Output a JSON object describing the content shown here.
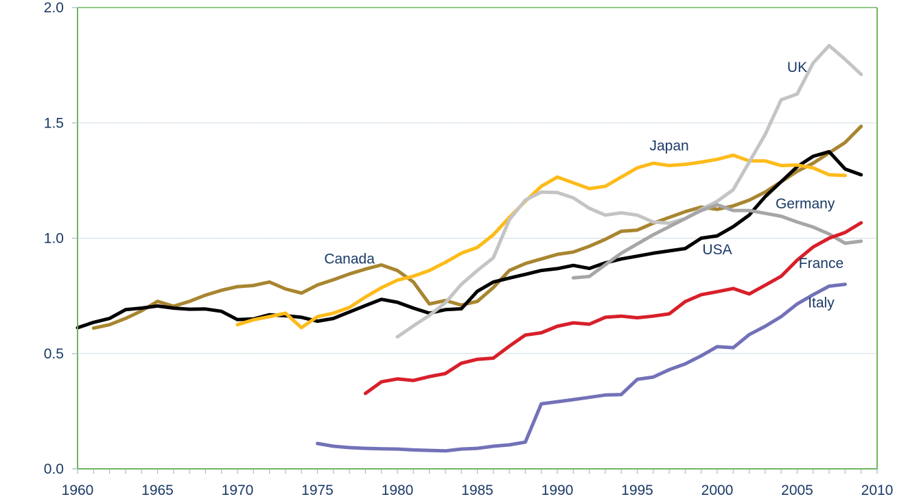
{
  "chart_data": {
    "type": "line",
    "title": "",
    "xlabel": "",
    "ylabel": "",
    "xlim": [
      1960,
      2010
    ],
    "ylim": [
      0.0,
      2.0
    ],
    "x_ticks": [
      "1960",
      "1965",
      "1970",
      "1975",
      "1980",
      "1985",
      "1990",
      "1995",
      "2000",
      "2005",
      "2010"
    ],
    "y_ticks": [
      "0.0",
      "0.5",
      "1.0",
      "1.5",
      "2.0"
    ],
    "grid": "horizontal",
    "legend": "inline labels",
    "colors": {
      "axis": "#6fb55f",
      "grid": "#9fb8cc",
      "label_text": "#1a3a66"
    },
    "series": [
      {
        "name": "Canada",
        "color": "#a88530",
        "label_anchor": {
          "year": 1977,
          "value": 0.89
        },
        "x": [
          1961,
          1962,
          1963,
          1964,
          1965,
          1966,
          1967,
          1968,
          1969,
          1970,
          1971,
          1972,
          1973,
          1974,
          1975,
          1976,
          1977,
          1978,
          1979,
          1980,
          1981,
          1982,
          1983,
          1984,
          1985,
          1986,
          1987,
          1988,
          1989,
          1990,
          1991,
          1992,
          1993,
          1994,
          1995,
          1996,
          1997,
          1998,
          1999,
          2000,
          2001,
          2002,
          2003,
          2004,
          2005,
          2006,
          2007,
          2008,
          2009
        ],
        "y": [
          0.61,
          0.625,
          0.652,
          0.685,
          0.726,
          0.705,
          0.726,
          0.753,
          0.774,
          0.79,
          0.795,
          0.81,
          0.78,
          0.762,
          0.797,
          0.82,
          0.845,
          0.866,
          0.884,
          0.86,
          0.81,
          0.715,
          0.73,
          0.71,
          0.726,
          0.786,
          0.86,
          0.89,
          0.91,
          0.93,
          0.94,
          0.965,
          0.995,
          1.03,
          1.035,
          1.065,
          1.09,
          1.115,
          1.135,
          1.125,
          1.14,
          1.165,
          1.2,
          1.245,
          1.29,
          1.325,
          1.37,
          1.415,
          1.485
        ]
      },
      {
        "name": "USA",
        "color": "#000000",
        "label_anchor": {
          "year": 2000,
          "value": 0.93
        },
        "x": [
          1960,
          1961,
          1962,
          1963,
          1964,
          1965,
          1966,
          1967,
          1968,
          1969,
          1970,
          1971,
          1972,
          1973,
          1974,
          1975,
          1976,
          1977,
          1978,
          1979,
          1980,
          1981,
          1982,
          1983,
          1984,
          1985,
          1986,
          1987,
          1988,
          1989,
          1990,
          1991,
          1992,
          1993,
          1994,
          1995,
          1996,
          1997,
          1998,
          1999,
          2000,
          2001,
          2002,
          2003,
          2004,
          2005,
          2006,
          2007,
          2008,
          2009
        ],
        "y": [
          0.612,
          0.635,
          0.652,
          0.69,
          0.697,
          0.706,
          0.697,
          0.692,
          0.693,
          0.683,
          0.647,
          0.65,
          0.668,
          0.664,
          0.657,
          0.64,
          0.652,
          0.68,
          0.708,
          0.735,
          0.722,
          0.697,
          0.675,
          0.69,
          0.694,
          0.77,
          0.81,
          0.827,
          0.843,
          0.86,
          0.868,
          0.882,
          0.869,
          0.893,
          0.91,
          0.922,
          0.935,
          0.945,
          0.955,
          1.0,
          1.01,
          1.05,
          1.1,
          1.18,
          1.245,
          1.31,
          1.355,
          1.375,
          1.3,
          1.275
        ]
      },
      {
        "name": "Japan",
        "color": "#fdbb1a",
        "label_anchor": {
          "year": 1997,
          "value": 1.38
        },
        "x": [
          1970,
          1971,
          1972,
          1973,
          1974,
          1975,
          1976,
          1977,
          1978,
          1979,
          1980,
          1981,
          1982,
          1983,
          1984,
          1985,
          1986,
          1987,
          1988,
          1989,
          1990,
          1991,
          1992,
          1993,
          1994,
          1995,
          1996,
          1997,
          1998,
          1999,
          2000,
          2001,
          2002,
          2003,
          2004,
          2005,
          2006,
          2007,
          2008
        ],
        "y": [
          0.625,
          0.646,
          0.66,
          0.675,
          0.612,
          0.66,
          0.675,
          0.7,
          0.745,
          0.785,
          0.818,
          0.835,
          0.86,
          0.895,
          0.935,
          0.96,
          1.015,
          1.09,
          1.16,
          1.225,
          1.265,
          1.24,
          1.215,
          1.225,
          1.265,
          1.305,
          1.325,
          1.315,
          1.32,
          1.33,
          1.342,
          1.36,
          1.335,
          1.335,
          1.315,
          1.317,
          1.305,
          1.275,
          1.272
        ]
      },
      {
        "name": "UK",
        "color": "#c4c4c4",
        "label_anchor": {
          "year": 2005,
          "value": 1.72
        },
        "x": [
          1980,
          1981,
          1982,
          1983,
          1984,
          1985,
          1986,
          1987,
          1988,
          1989,
          1990,
          1991,
          1992,
          1993,
          1994,
          1995,
          1996,
          1997,
          1998,
          1999,
          2000,
          2001,
          2002,
          2003,
          2004,
          2005,
          2006,
          2007,
          2008,
          2009
        ],
        "y": [
          0.572,
          0.62,
          0.665,
          0.72,
          0.8,
          0.86,
          0.915,
          1.08,
          1.165,
          1.2,
          1.198,
          1.175,
          1.13,
          1.1,
          1.11,
          1.1,
          1.07,
          1.065,
          1.085,
          1.125,
          1.16,
          1.21,
          1.33,
          1.45,
          1.6,
          1.625,
          1.76,
          1.835,
          1.775,
          1.71
        ]
      },
      {
        "name": "Germany",
        "color": "#a6a6a6",
        "label_anchor": {
          "year": 2005.5,
          "value": 1.13
        },
        "x": [
          1991,
          1992,
          1993,
          1994,
          1995,
          1996,
          1997,
          1998,
          1999,
          2000,
          2001,
          2002,
          2003,
          2004,
          2005,
          2006,
          2007,
          2008,
          2009
        ],
        "y": [
          0.828,
          0.834,
          0.885,
          0.935,
          0.975,
          1.015,
          1.05,
          1.085,
          1.12,
          1.145,
          1.12,
          1.12,
          1.108,
          1.095,
          1.07,
          1.048,
          1.018,
          0.978,
          0.987
        ]
      },
      {
        "name": "France",
        "color": "#d81f2a",
        "label_anchor": {
          "year": 2006.5,
          "value": 0.87
        },
        "x": [
          1978,
          1979,
          1980,
          1981,
          1982,
          1983,
          1984,
          1985,
          1986,
          1987,
          1988,
          1989,
          1990,
          1991,
          1992,
          1993,
          1994,
          1995,
          1996,
          1997,
          1998,
          1999,
          2000,
          2001,
          2002,
          2003,
          2004,
          2005,
          2006,
          2007,
          2008,
          2009
        ],
        "y": [
          0.327,
          0.377,
          0.39,
          0.383,
          0.4,
          0.413,
          0.458,
          0.475,
          0.48,
          0.532,
          0.58,
          0.59,
          0.618,
          0.633,
          0.627,
          0.657,
          0.662,
          0.655,
          0.662,
          0.672,
          0.725,
          0.755,
          0.768,
          0.782,
          0.758,
          0.796,
          0.835,
          0.905,
          0.962,
          1.0,
          1.025,
          1.067
        ]
      },
      {
        "name": "Italy",
        "color": "#7271b8",
        "label_anchor": {
          "year": 2006.5,
          "value": 0.7
        },
        "x": [
          1975,
          1976,
          1977,
          1978,
          1979,
          1980,
          1981,
          1982,
          1983,
          1984,
          1985,
          1986,
          1987,
          1988,
          1989,
          1990,
          1991,
          1992,
          1993,
          1994,
          1995,
          1996,
          1997,
          1998,
          1999,
          2000,
          2001,
          2002,
          2003,
          2004,
          2005,
          2006,
          2007,
          2008
        ],
        "y": [
          0.11,
          0.098,
          0.092,
          0.089,
          0.087,
          0.086,
          0.082,
          0.08,
          0.078,
          0.086,
          0.089,
          0.098,
          0.104,
          0.116,
          0.282,
          0.291,
          0.3,
          0.31,
          0.32,
          0.322,
          0.388,
          0.398,
          0.43,
          0.455,
          0.49,
          0.53,
          0.525,
          0.582,
          0.618,
          0.66,
          0.715,
          0.755,
          0.792,
          0.8
        ]
      }
    ]
  }
}
